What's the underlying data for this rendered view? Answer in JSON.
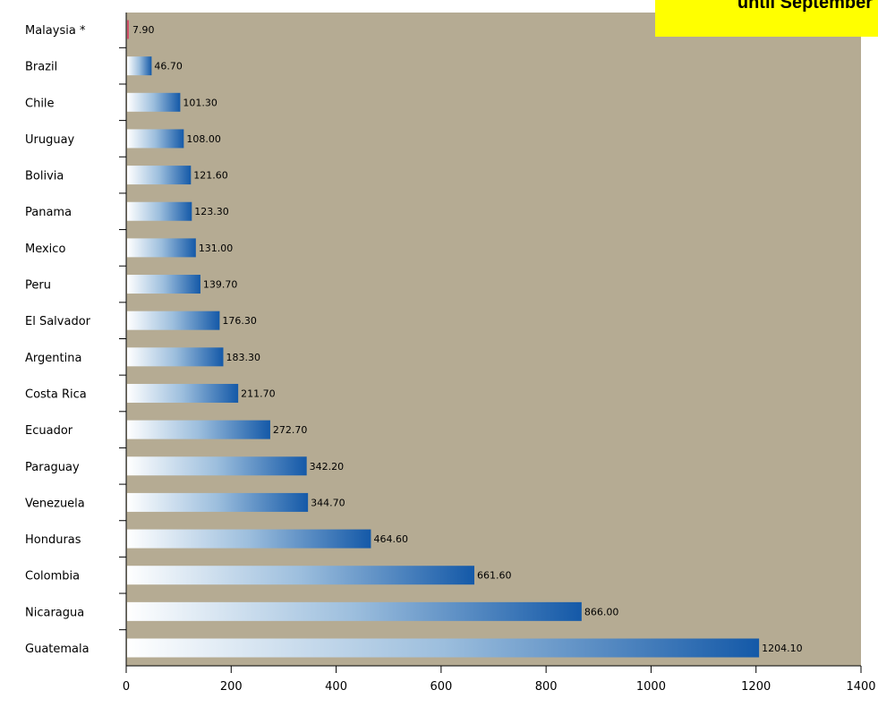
{
  "note": "until September",
  "colors": {
    "plot_background": "#b5ab93",
    "bar_dark": "#1459a8",
    "bar_light": "#ffffff",
    "small_bar": "#d0506a",
    "note_background": "#ffff00"
  },
  "chart_data": {
    "type": "bar",
    "orientation": "horizontal",
    "title": "",
    "xlabel": "",
    "ylabel": "",
    "categories": [
      "Malaysia *",
      "Brazil",
      "Chile",
      "Uruguay",
      "Bolivia",
      "Panama",
      "Mexico",
      "Peru",
      "El Salvador",
      "Argentina",
      "Costa Rica",
      "Ecuador",
      "Paraguay",
      "Venezuela",
      "Honduras",
      "Colombia",
      "Nicaragua",
      "Guatemala"
    ],
    "values": [
      7.9,
      46.7,
      101.3,
      108.0,
      121.6,
      123.3,
      131.0,
      139.7,
      176.3,
      183.3,
      211.7,
      272.7,
      342.2,
      344.7,
      464.6,
      661.6,
      866.0,
      1204.1
    ],
    "value_labels": [
      "7.90",
      "46.70",
      "101.30",
      "108.00",
      "121.60",
      "123.30",
      "131.00",
      "139.70",
      "176.30",
      "183.30",
      "211.70",
      "272.70",
      "342.20",
      "344.70",
      "464.60",
      "661.60",
      "866.00",
      "1204.10"
    ],
    "xlim": [
      0,
      1400
    ],
    "x_ticks": [
      "0",
      "200",
      "400",
      "600",
      "800",
      "1000",
      "1200",
      "1400"
    ],
    "grid": false,
    "legend": "none"
  }
}
